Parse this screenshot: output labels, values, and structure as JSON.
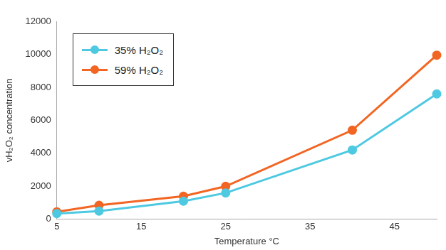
{
  "chart_data": {
    "type": "line",
    "x_label": "Temperature °C",
    "y_label": "vH₂O₂ concentration",
    "x": [
      5,
      10,
      20,
      25,
      40,
      50
    ],
    "series": [
      {
        "name": "35% H₂O₂",
        "color": "#4ec9e1",
        "values": [
          350,
          500,
          1100,
          1600,
          4200,
          7600
        ]
      },
      {
        "name": "59% H₂O₂",
        "color": "#f26522",
        "values": [
          450,
          850,
          1400,
          2000,
          5400,
          9950
        ]
      }
    ],
    "xlim": [
      5,
      50
    ],
    "xticks": [
      5,
      15,
      25,
      35,
      45
    ],
    "ylim": [
      0,
      12000
    ],
    "yticks": [
      0,
      2000,
      4000,
      6000,
      8000,
      10000,
      12000
    ],
    "grid": false,
    "legend": "upper left",
    "marker": "circle",
    "line_style": "solid"
  }
}
